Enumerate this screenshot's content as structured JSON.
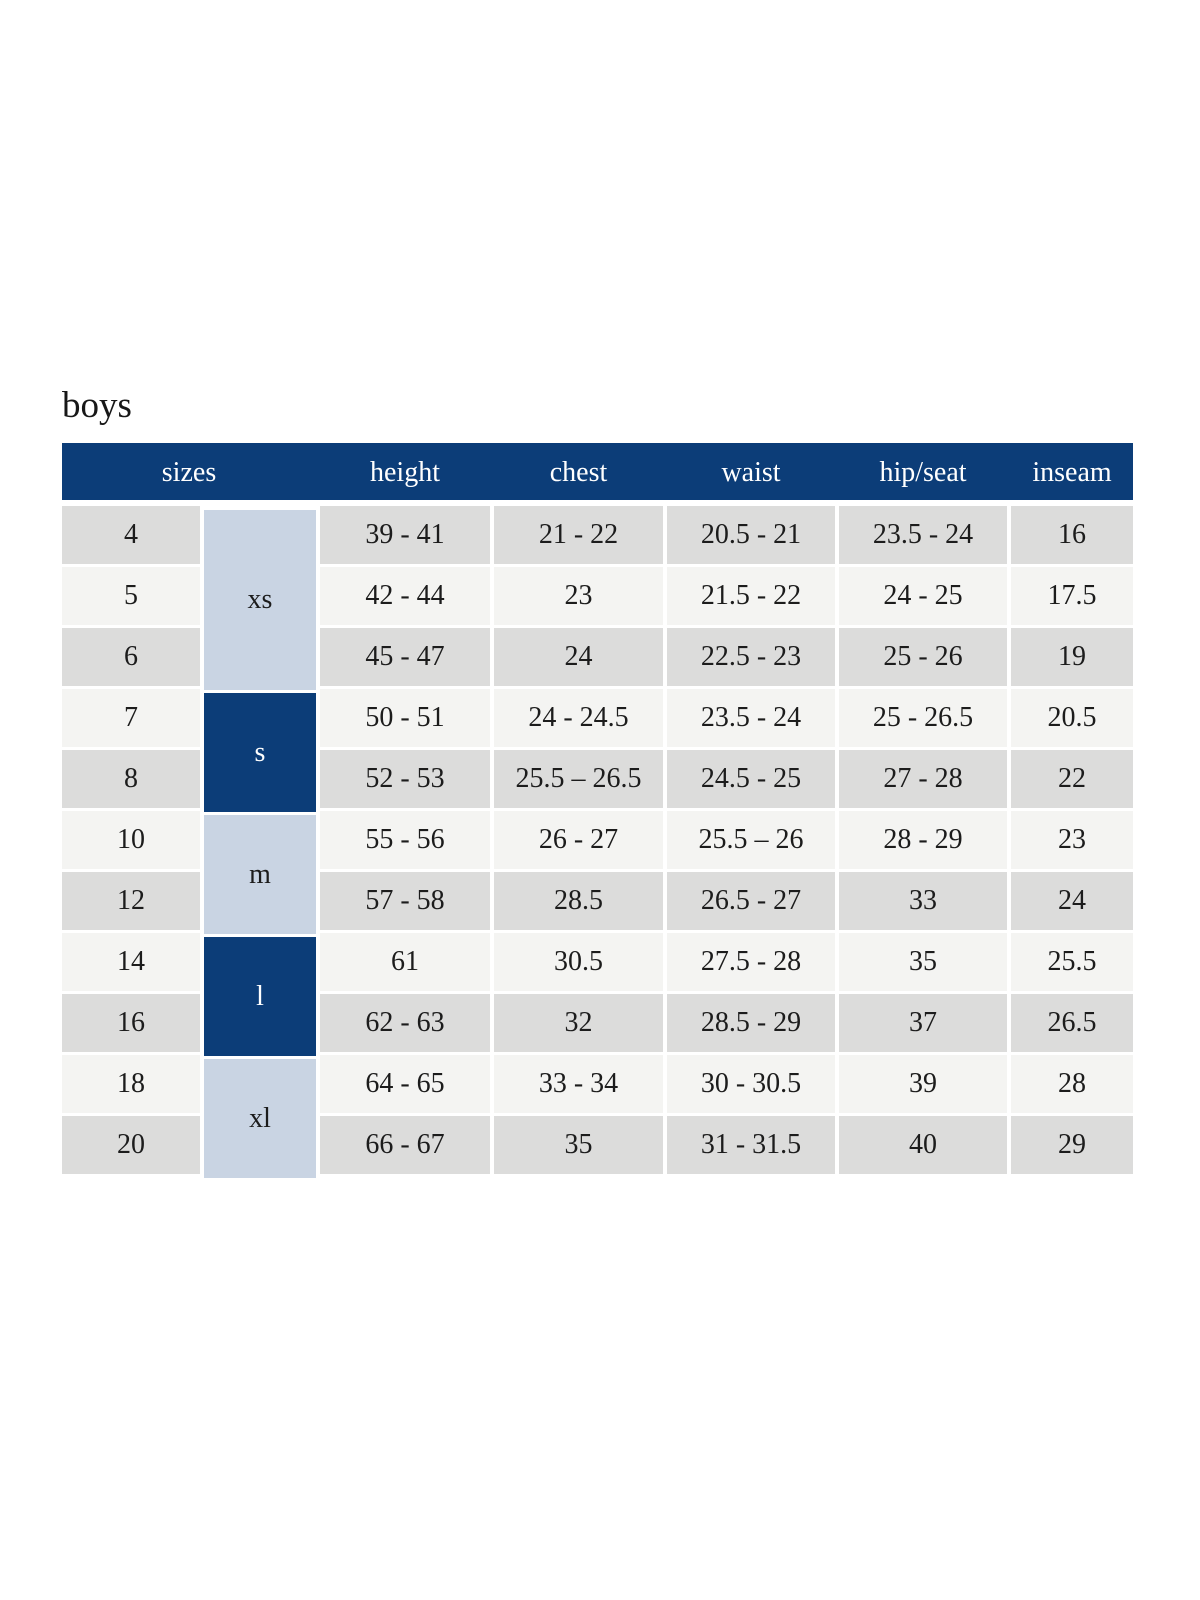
{
  "page": {
    "title": "boys"
  },
  "table": {
    "headers": [
      "sizes",
      "height",
      "chest",
      "waist",
      "hip/seat",
      "inseam"
    ],
    "size_groups": [
      {
        "label": "xs",
        "rows": 3,
        "style": "light"
      },
      {
        "label": "s",
        "rows": 2,
        "style": "dark"
      },
      {
        "label": "m",
        "rows": 2,
        "style": "light"
      },
      {
        "label": "l",
        "rows": 2,
        "style": "dark"
      },
      {
        "label": "xl",
        "rows": 2,
        "style": "light"
      }
    ],
    "rows": [
      {
        "size": "4",
        "height": "39 - 41",
        "chest": "21 - 22",
        "waist": "20.5 - 21",
        "hip_seat": "23.5 - 24",
        "inseam": "16"
      },
      {
        "size": "5",
        "height": "42 - 44",
        "chest": "23",
        "waist": "21.5 - 22",
        "hip_seat": "24 - 25",
        "inseam": "17.5"
      },
      {
        "size": "6",
        "height": "45 - 47",
        "chest": "24",
        "waist": "22.5 - 23",
        "hip_seat": "25 - 26",
        "inseam": "19"
      },
      {
        "size": "7",
        "height": "50 - 51",
        "chest": "24 - 24.5",
        "waist": "23.5 - 24",
        "hip_seat": "25 - 26.5",
        "inseam": "20.5"
      },
      {
        "size": "8",
        "height": "52 - 53",
        "chest": "25.5 – 26.5",
        "waist": "24.5 - 25",
        "hip_seat": "27 - 28",
        "inseam": "22"
      },
      {
        "size": "10",
        "height": "55 - 56",
        "chest": "26 - 27",
        "waist": "25.5 – 26",
        "hip_seat": "28 - 29",
        "inseam": "23"
      },
      {
        "size": "12",
        "height": "57 - 58",
        "chest": "28.5",
        "waist": "26.5 - 27",
        "hip_seat": "33",
        "inseam": "24"
      },
      {
        "size": "14",
        "height": "61",
        "chest": "30.5",
        "waist": "27.5 - 28",
        "hip_seat": "35",
        "inseam": "25.5"
      },
      {
        "size": "16",
        "height": "62 - 63",
        "chest": "32",
        "waist": "28.5 - 29",
        "hip_seat": "37",
        "inseam": "26.5"
      },
      {
        "size": "18",
        "height": "64 - 65",
        "chest": "33 - 34",
        "waist": "30 - 30.5",
        "hip_seat": "39",
        "inseam": "28"
      },
      {
        "size": "20",
        "height": "66 - 67",
        "chest": "35",
        "waist": "31 - 31.5",
        "hip_seat": "40",
        "inseam": "29"
      }
    ],
    "colors": {
      "header_bg": "#0c3d78",
      "header_text": "#ffffff",
      "group_light_bg": "#c9d4e3",
      "row_dark_bg": "#dcdcdb",
      "row_light_bg": "#f4f4f2",
      "body_text": "#1c1c1c",
      "page_bg": "#ffffff"
    }
  }
}
